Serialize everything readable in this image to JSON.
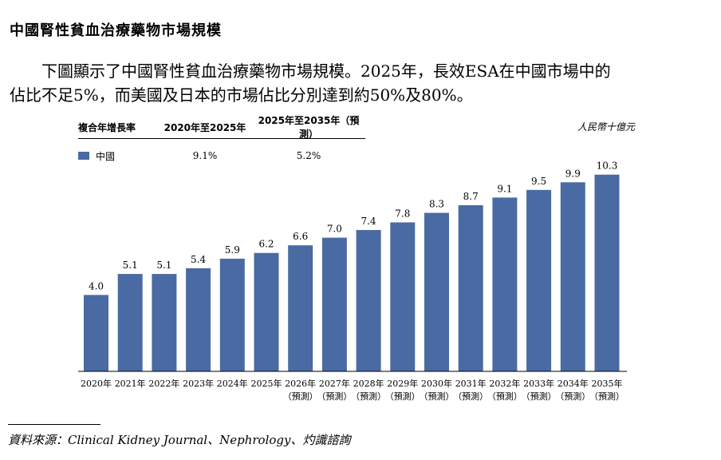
{
  "heading": "中國腎性貧血治療藥物市場規模",
  "paragraph": {
    "line1": "下圖顯示了中國腎性貧血治療藥物市場規模。2025年，長效ESA在中國市場中的",
    "line2": "佔比不足5%，而美國及日本的市場佔比分別達到約50%及80%。"
  },
  "cagr_table": {
    "label": "複合年增長率",
    "col1": "2020年至2025年",
    "col2": "2025年至2035年（預測）",
    "series_name": "中國",
    "val1": "9.1%",
    "val2": "5.2%"
  },
  "unit": "人民幣十億元",
  "source": "資料來源：Clinical Kidney Journal、Nephrology、灼識諮詢",
  "chart_data": {
    "type": "bar",
    "categories": [
      "2020年",
      "2021年",
      "2022年",
      "2023年",
      "2024年",
      "2025年",
      "2026年",
      "2027年",
      "2028年",
      "2029年",
      "2030年",
      "2031年",
      "2032年",
      "2033年",
      "2034年",
      "2035年"
    ],
    "forecast_from_index": 6,
    "forecast_label": "（預測）",
    "values": [
      4.0,
      5.1,
      5.1,
      5.4,
      5.9,
      6.2,
      6.6,
      7.0,
      7.4,
      7.8,
      8.3,
      8.7,
      9.1,
      9.5,
      9.9,
      10.3
    ],
    "value_labels": [
      "4.0",
      "5.1",
      "5.1",
      "5.4",
      "5.9",
      "6.2",
      "6.6",
      "7.0",
      "7.4",
      "7.8",
      "8.3",
      "8.7",
      "9.1",
      "9.5",
      "9.9",
      "10.3"
    ],
    "series": [
      {
        "name": "中國",
        "color": "#4a6aa3"
      }
    ],
    "ylim": [
      0,
      11.5
    ],
    "grid": false
  }
}
